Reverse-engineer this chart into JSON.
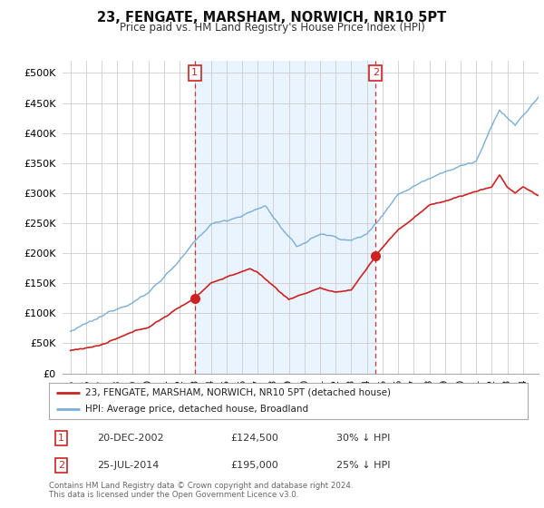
{
  "title": "23, FENGATE, MARSHAM, NORWICH, NR10 5PT",
  "subtitle": "Price paid vs. HM Land Registry's House Price Index (HPI)",
  "hpi_color": "#7aaed6",
  "price_color": "#cc2222",
  "vline_color": "#cc3333",
  "background_color": "#ffffff",
  "grid_color": "#cccccc",
  "shade_color": "#ddeeff",
  "ylim": [
    0,
    520000
  ],
  "yticks": [
    0,
    50000,
    100000,
    150000,
    200000,
    250000,
    300000,
    350000,
    400000,
    450000,
    500000
  ],
  "xlim_start": 1994.5,
  "xlim_end": 2025.0,
  "purchase1_x": 2002.97,
  "purchase1_y": 124500,
  "purchase1_label": "1",
  "purchase2_x": 2014.56,
  "purchase2_y": 195000,
  "purchase2_label": "2",
  "legend_line1": "23, FENGATE, MARSHAM, NORWICH, NR10 5PT (detached house)",
  "legend_line2": "HPI: Average price, detached house, Broadland",
  "table_row1": [
    "1",
    "20-DEC-2002",
    "£124,500",
    "30% ↓ HPI"
  ],
  "table_row2": [
    "2",
    "25-JUL-2014",
    "£195,000",
    "25% ↓ HPI"
  ],
  "footer": "Contains HM Land Registry data © Crown copyright and database right 2024.\nThis data is licensed under the Open Government Licence v3.0.",
  "xtick_years": [
    1995,
    1996,
    1997,
    1998,
    1999,
    2000,
    2001,
    2002,
    2003,
    2004,
    2005,
    2006,
    2007,
    2008,
    2009,
    2010,
    2011,
    2012,
    2013,
    2014,
    2015,
    2016,
    2017,
    2018,
    2019,
    2020,
    2021,
    2022,
    2023,
    2024
  ]
}
